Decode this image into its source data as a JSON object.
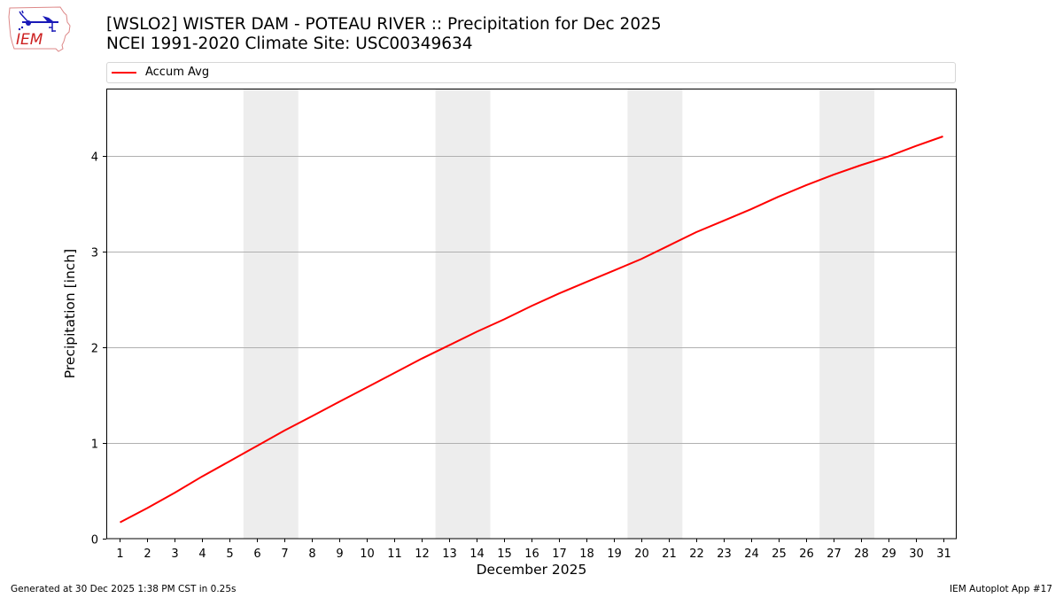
{
  "header": {
    "title_line1": "[WSLO2] WISTER DAM - POTEAU RIVER :: Precipitation for Dec 2025",
    "title_line2": "NCEI 1991-2020 Climate Site: USC00349634",
    "logo_text": "IEM",
    "logo_icon": "iem-iowa-weather-logo-icon"
  },
  "legend": {
    "items": [
      {
        "label": "Accum Avg",
        "color": "#ff0000"
      }
    ]
  },
  "footer": {
    "left": "Generated at 30 Dec 2025 1:38 PM CST in 0.25s",
    "right": "IEM Autoplot App #17"
  },
  "colors": {
    "line": "#ff0000",
    "weekend_shade": "#ededed",
    "grid": "#b0b0b0",
    "axis": "#000000"
  },
  "chart_data": {
    "type": "line",
    "title": "[WSLO2] WISTER DAM - POTEAU RIVER :: Precipitation for Dec 2025",
    "subtitle": "NCEI 1991-2020 Climate Site: USC00349634",
    "xlabel": "December 2025",
    "ylabel": "Precipitation [inch]",
    "x": [
      1,
      2,
      3,
      4,
      5,
      6,
      7,
      8,
      9,
      10,
      11,
      12,
      13,
      14,
      15,
      16,
      17,
      18,
      19,
      20,
      21,
      22,
      23,
      24,
      25,
      26,
      27,
      28,
      29,
      30,
      31
    ],
    "series": [
      {
        "name": "Accum Avg",
        "color": "#ff0000",
        "values": [
          0.17,
          0.32,
          0.48,
          0.65,
          0.81,
          0.97,
          1.13,
          1.28,
          1.43,
          1.58,
          1.73,
          1.88,
          2.02,
          2.16,
          2.29,
          2.43,
          2.56,
          2.68,
          2.8,
          2.92,
          3.06,
          3.2,
          3.32,
          3.44,
          3.57,
          3.69,
          3.8,
          3.9,
          3.99,
          4.1,
          4.2
        ]
      }
    ],
    "xlim": [
      0.5,
      31.5
    ],
    "ylim": [
      0,
      4.7
    ],
    "yticks": [
      0,
      1,
      2,
      3,
      4
    ],
    "xticks": [
      "1",
      "2",
      "3",
      "4",
      "5",
      "6",
      "7",
      "8",
      "9",
      "10",
      "11",
      "12",
      "13",
      "14",
      "15",
      "16",
      "17",
      "18",
      "19",
      "20",
      "21",
      "22",
      "23",
      "24",
      "25",
      "26",
      "27",
      "28",
      "29",
      "30",
      "31"
    ],
    "grid": "y-major",
    "legend_position": "top, above plot",
    "shaded_weekends": [
      [
        6,
        7
      ],
      [
        13,
        14
      ],
      [
        20,
        21
      ],
      [
        27,
        28
      ]
    ]
  }
}
